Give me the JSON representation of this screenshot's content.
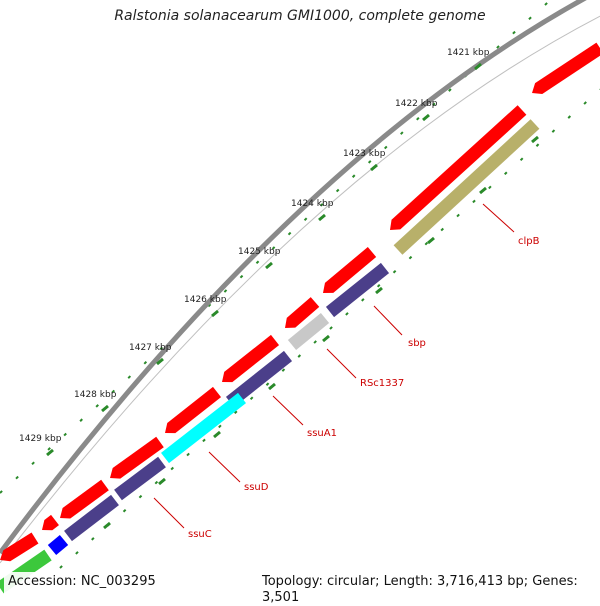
{
  "title": "Ralstonia solanacearum GMI1000, complete genome",
  "footer": {
    "accession": "Accession: NC_003295",
    "topology": "Topology: circular; Length: 3,716,413 bp; Genes: 3,501"
  },
  "ticks": [
    {
      "label": "1421 kbp",
      "kbp": 1421
    },
    {
      "label": "1422 kbp",
      "kbp": 1422
    },
    {
      "label": "1423 kbp",
      "kbp": 1423
    },
    {
      "label": "1424 kbp",
      "kbp": 1424
    },
    {
      "label": "1425 kbp",
      "kbp": 1425
    },
    {
      "label": "1426 kbp",
      "kbp": 1426
    },
    {
      "label": "1427 kbp",
      "kbp": 1427
    },
    {
      "label": "1428 kbp",
      "kbp": 1428
    },
    {
      "label": "1429 kbp",
      "kbp": 1429
    }
  ],
  "gene_labels": [
    {
      "name": "clpB",
      "text": "clpB"
    },
    {
      "name": "sbp",
      "text": "sbp"
    },
    {
      "name": "rsc1337",
      "text": "RSc1337"
    },
    {
      "name": "ssua1",
      "text": "ssuA1"
    },
    {
      "name": "ssud",
      "text": "ssuD"
    },
    {
      "name": "ssuc",
      "text": "ssuC"
    }
  ],
  "colors": {
    "backbone": "#8a8a8a",
    "cds_red": "#ff0000",
    "cds_purple": "#4b3f8a",
    "cds_cyan": "#00ffff",
    "cds_olive": "#b8b06a",
    "cds_gray": "#c8c8c8",
    "cds_blue": "#0000ff",
    "cds_green": "#3cc83c",
    "tick_green": "#2a8a2a",
    "label_red": "#cc0000"
  }
}
